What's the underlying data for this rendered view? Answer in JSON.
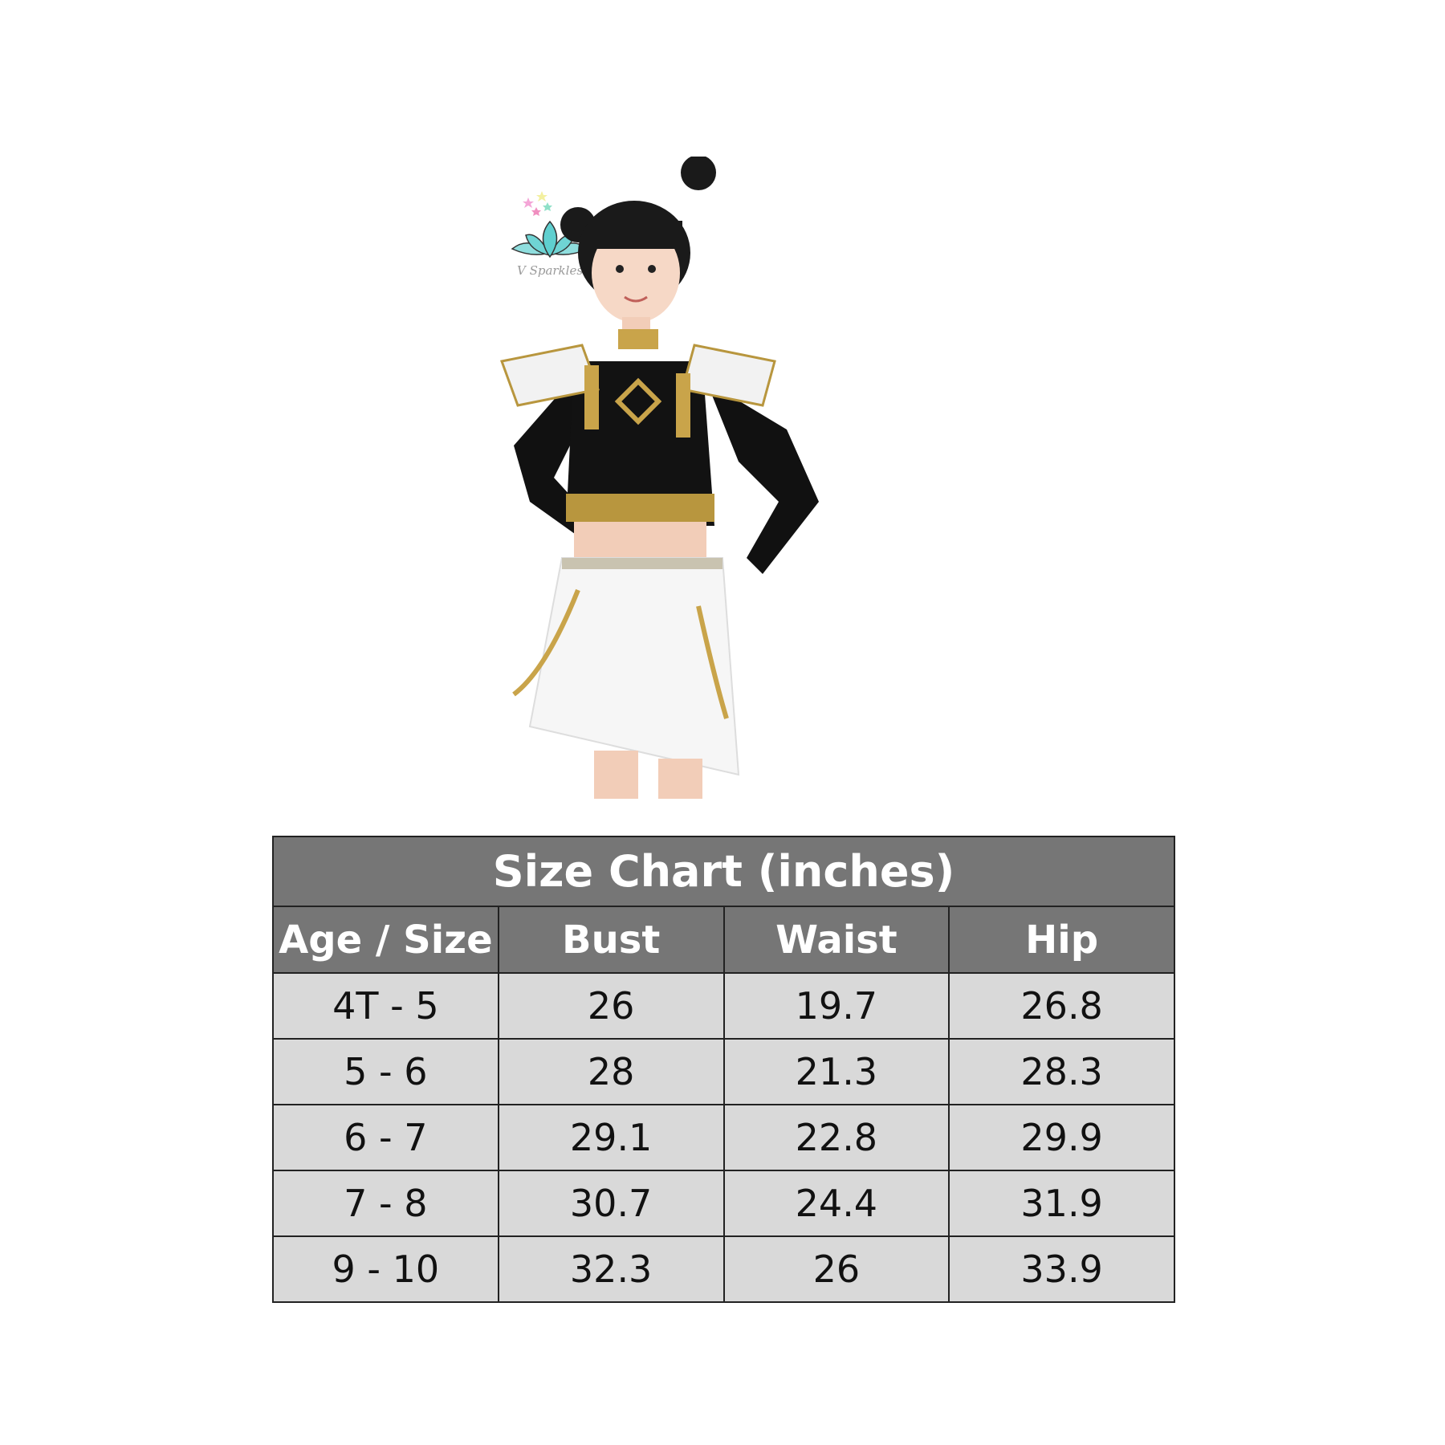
{
  "logo": {
    "text": "V Sparkles",
    "colors": {
      "lotus": "#5fcfcf",
      "text": "#9a9a9a"
    }
  },
  "product_image": {
    "description_icon": "child-costume-photo"
  },
  "size_chart": {
    "title": "Size Chart (inches)",
    "columns": [
      "Age / Size",
      "Bust",
      "Waist",
      "Hip"
    ],
    "rows": [
      [
        "4T - 5",
        "26",
        "19.7",
        "26.8"
      ],
      [
        "5 - 6",
        "28",
        "21.3",
        "28.3"
      ],
      [
        "6 - 7",
        "29.1",
        "22.8",
        "29.9"
      ],
      [
        "7 - 8",
        "30.7",
        "24.4",
        "31.9"
      ],
      [
        "9 - 10",
        "32.3",
        "26",
        "33.9"
      ]
    ],
    "colors": {
      "header_bg": "#767676",
      "row_bg": "#d9d9d9"
    }
  }
}
